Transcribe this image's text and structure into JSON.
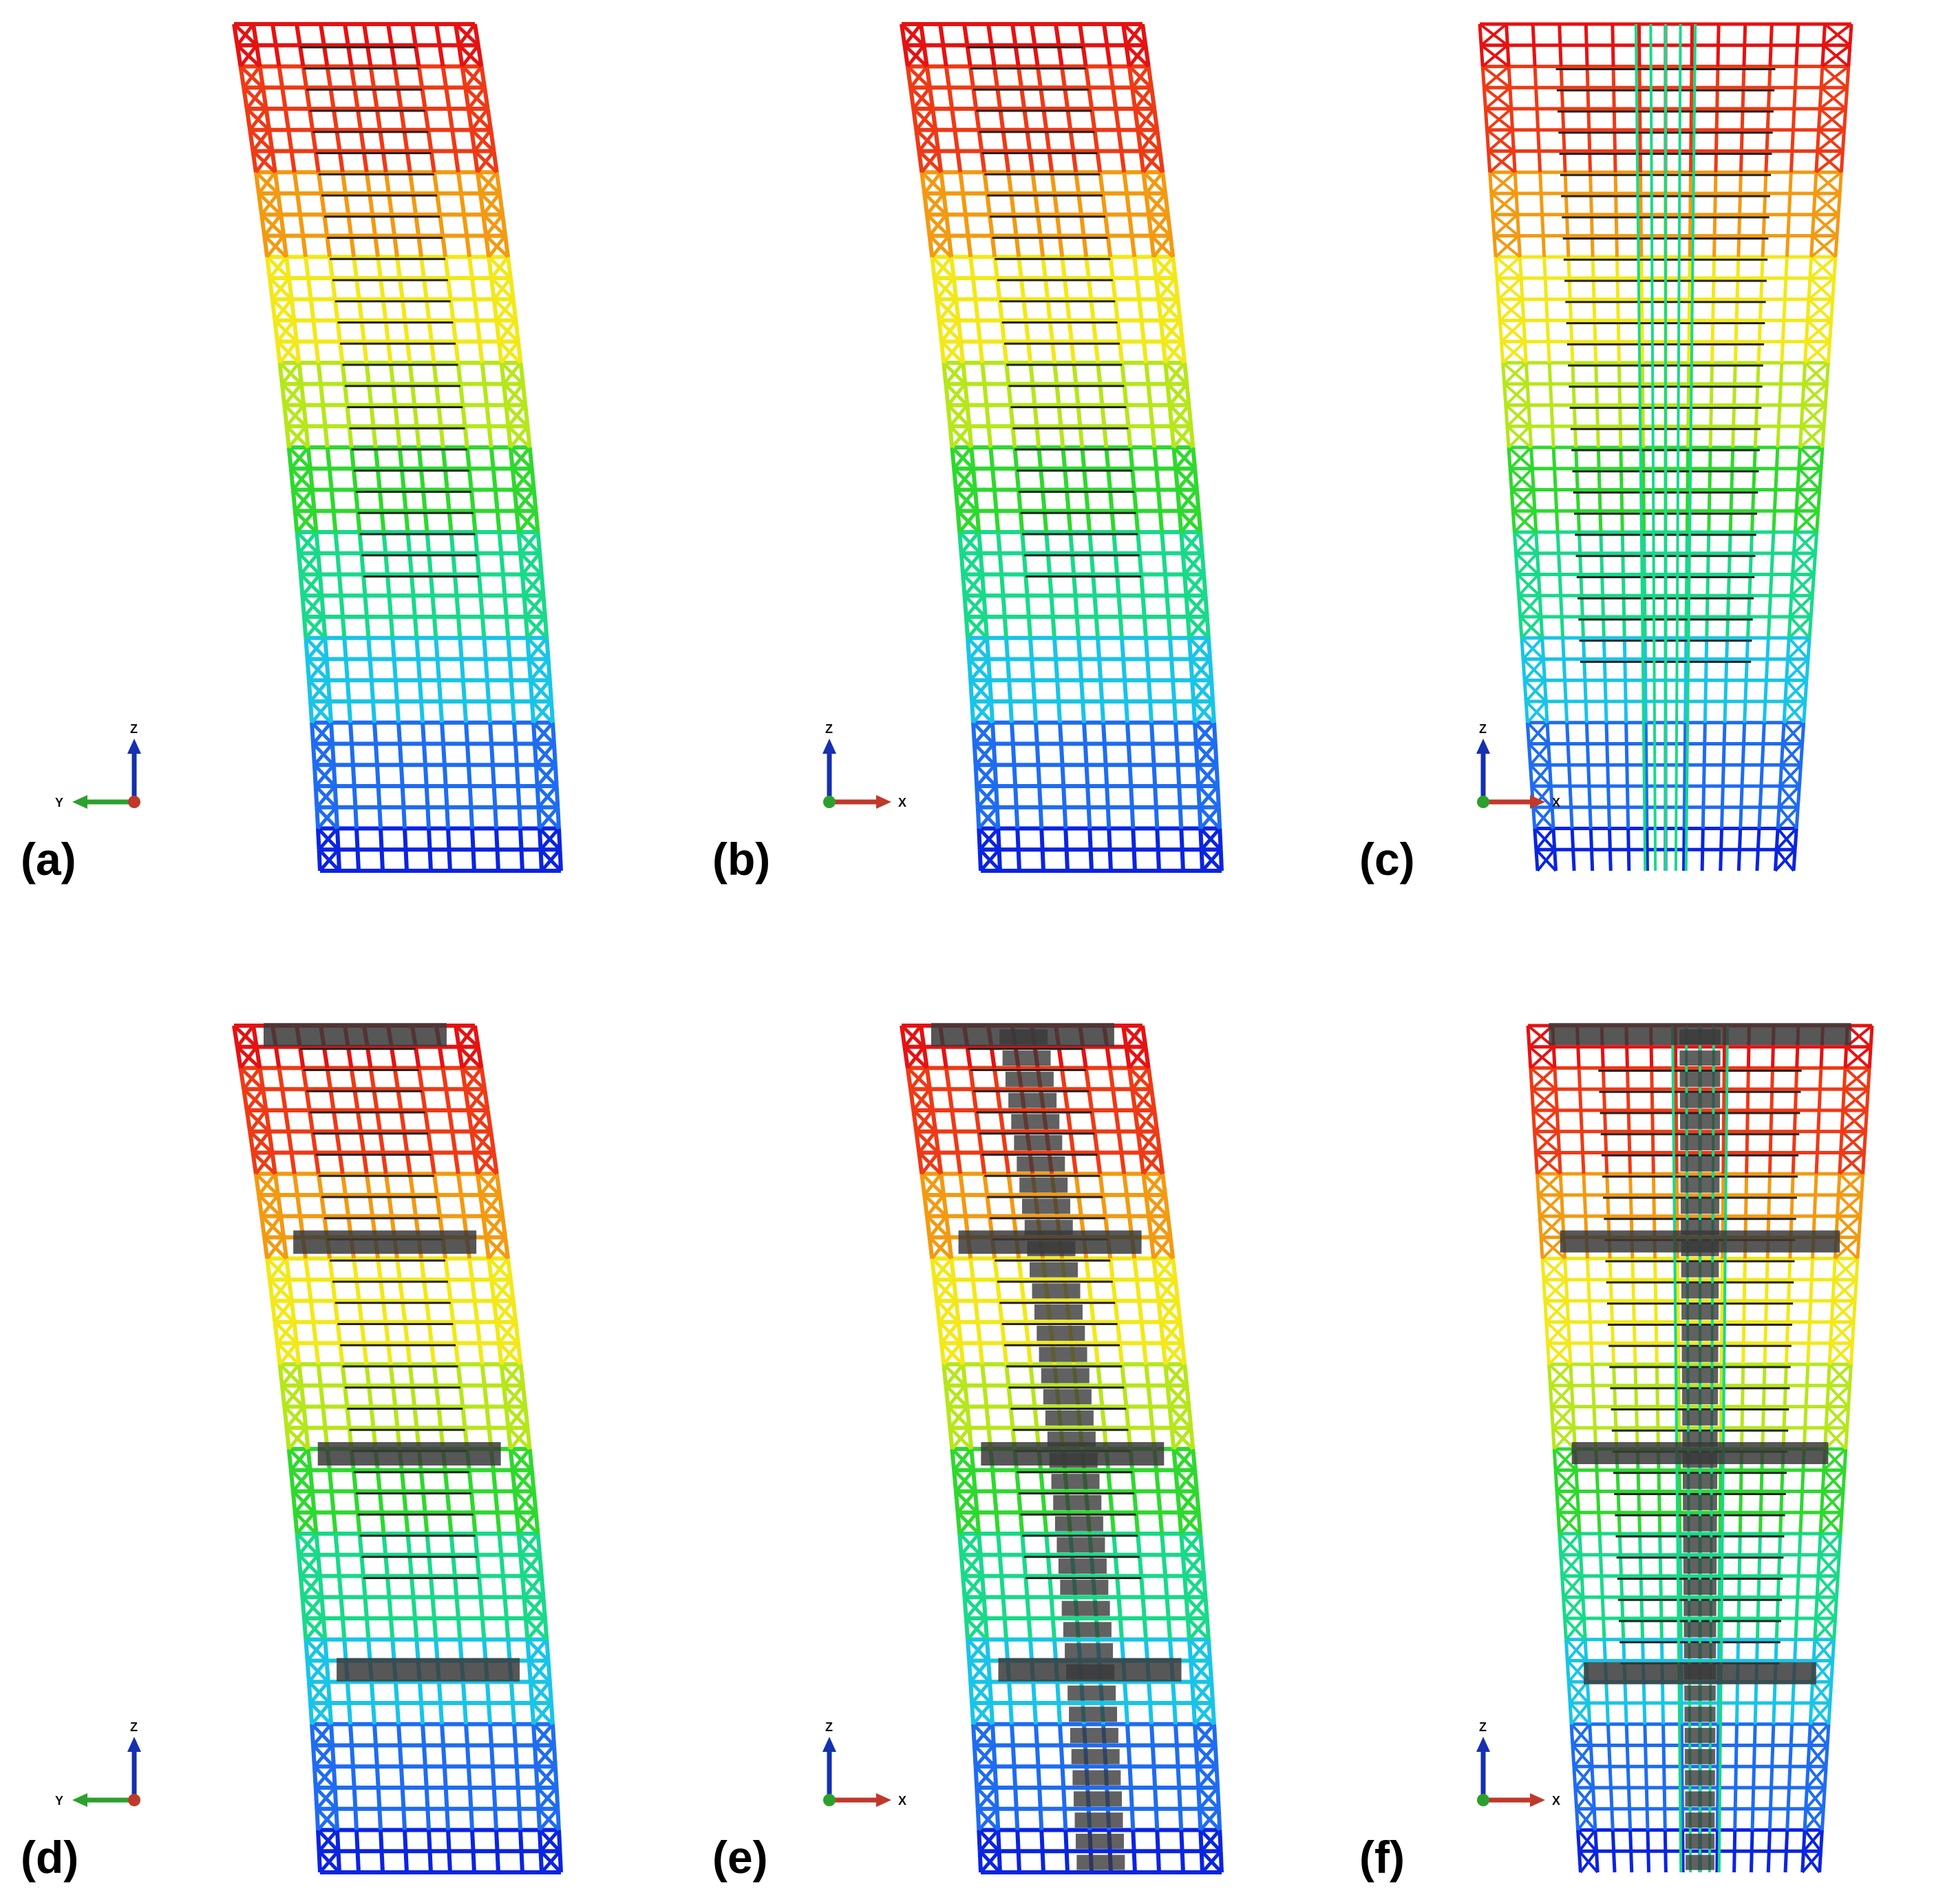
{
  "figure": {
    "panels": [
      {
        "id": "a",
        "label": "(a)",
        "view": "side-y",
        "layout": "frame",
        "h_axis": "Y",
        "h_axis_color": "#2ca02c",
        "v_axis": "Z",
        "outriggers": false,
        "core": false
      },
      {
        "id": "b",
        "label": "(b)",
        "view": "side-x",
        "layout": "frame",
        "h_axis": "X",
        "h_axis_color": "#c0392b",
        "v_axis": "Z",
        "outriggers": false,
        "core": false
      },
      {
        "id": "c",
        "label": "(c)",
        "view": "perspective",
        "layout": "taper",
        "h_axis": "X",
        "h_axis_color": "#c0392b",
        "v_axis": "Z",
        "outriggers": false,
        "core": false
      },
      {
        "id": "d",
        "label": "(d)",
        "view": "side-y",
        "layout": "frame",
        "h_axis": "Y",
        "h_axis_color": "#2ca02c",
        "v_axis": "Z",
        "outriggers": true,
        "core": false
      },
      {
        "id": "e",
        "label": "(e)",
        "view": "side-x",
        "layout": "frame",
        "h_axis": "X",
        "h_axis_color": "#c0392b",
        "v_axis": "Z",
        "outriggers": true,
        "core": true
      },
      {
        "id": "f",
        "label": "(f)",
        "view": "perspective",
        "layout": "taper",
        "h_axis": "X",
        "h_axis_color": "#c0392b",
        "v_axis": "Z",
        "outriggers": true,
        "core": true
      }
    ],
    "colormap": [
      "#0a24e0",
      "#1f6cf0",
      "#19c4e6",
      "#19d98a",
      "#2fd82f",
      "#b6e61c",
      "#f2e81a",
      "#f29a12",
      "#ee3a16",
      "#e51212"
    ],
    "outrigger_color": "#3a3a3a"
  }
}
